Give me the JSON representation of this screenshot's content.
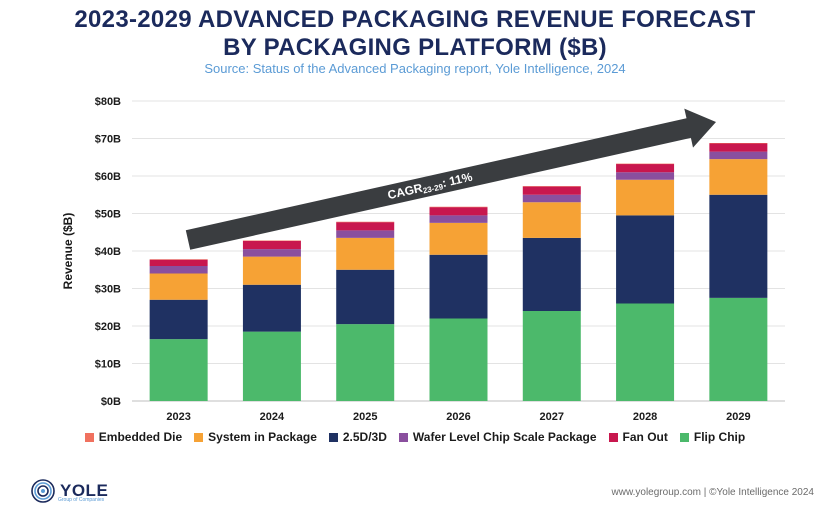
{
  "header": {
    "title_line1": "2023-2029 ADVANCED PACKAGING REVENUE FORECAST",
    "title_line2": "BY PACKAGING PLATFORM ($B)",
    "source": "Source: Status of the Advanced Packaging report, Yole Intelligence, 2024"
  },
  "chart_data": {
    "type": "bar",
    "stacked": true,
    "title": "2023-2029 ADVANCED PACKAGING REVENUE FORECAST BY PACKAGING PLATFORM ($B)",
    "xlabel": "",
    "ylabel": "Revenue ($B)",
    "ylim": [
      0,
      80
    ],
    "yticks": [
      "$0B",
      "$10B",
      "$20B",
      "$30B",
      "$40B",
      "$50B",
      "$60B",
      "$70B",
      "$80B"
    ],
    "categories": [
      "2023",
      "2024",
      "2025",
      "2026",
      "2027",
      "2028",
      "2029"
    ],
    "series": [
      {
        "name": "Flip Chip",
        "color": "#4cb96b",
        "values": [
          16.5,
          18.5,
          20.5,
          22,
          24,
          26,
          27.5
        ]
      },
      {
        "name": "2.5D/3D",
        "color": "#1f3162",
        "values": [
          10.5,
          12.5,
          14.5,
          17,
          19.5,
          23.5,
          27.5
        ]
      },
      {
        "name": "System in Package",
        "color": "#f6a235",
        "values": [
          7,
          7.5,
          8.5,
          8.5,
          9.5,
          9.5,
          9.5
        ]
      },
      {
        "name": "Wafer Level Chip Scale Package",
        "color": "#8a4f9e",
        "values": [
          2,
          2,
          2,
          2,
          2,
          2,
          2
        ]
      },
      {
        "name": "Fan Out",
        "color": "#c8174e",
        "values": [
          1.7,
          2.2,
          2.2,
          2.2,
          2.2,
          2.2,
          2.2
        ]
      },
      {
        "name": "Embedded Die",
        "color": "#f0715f",
        "values": [
          0.1,
          0.1,
          0.1,
          0.1,
          0.1,
          0.1,
          0.1
        ]
      }
    ],
    "legend_order": [
      "Embedded Die",
      "System in Package",
      "2.5D/3D",
      "Wafer Level Chip Scale Package",
      "Fan Out",
      "Flip Chip"
    ],
    "legend_position": "bottom",
    "annotation": {
      "prefix": "CAGR",
      "sub": "23-29",
      "suffix": ": 11%"
    },
    "arrow_color": "#3a3d40"
  },
  "footer": {
    "logo_text": "YOLE",
    "logo_sub": "Group of Companies",
    "credit": "www.yolegroup.com | ©Yole Intelligence 2024"
  }
}
